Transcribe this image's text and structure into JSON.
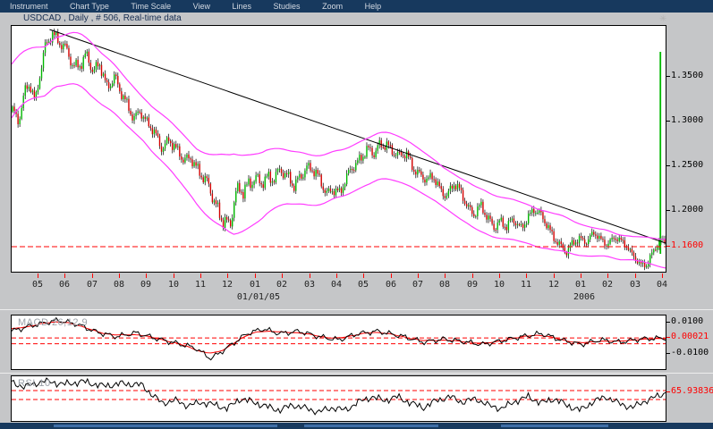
{
  "menubar": {
    "items": [
      "Instrument",
      "Chart Type",
      "Time Scale",
      "View",
      "Lines",
      "Studies",
      "Zoom",
      "Help"
    ]
  },
  "title_bar": {
    "text": "USDCAD , Daily , # 506, Real-time data"
  },
  "colors": {
    "up_candle": "#00b800",
    "down_candle": "#d40000",
    "wick": "#000000",
    "bollinger_band": "#ff3cff",
    "trendline": "#000000",
    "support_line": "#ff0000",
    "menu_bg": "#17395e",
    "menu_text": "#d4dae3",
    "panel_bg": "#ffffff",
    "app_bg": "#c5c6c8",
    "macd_line": "#000000",
    "macd_signal": "#ff0000",
    "rsi_line": "#000000",
    "axis_text": "#222222"
  },
  "chart_data": [
    {
      "type": "candlestick",
      "instrument": "USDCAD",
      "timeframe": "Daily",
      "candle_count": 506,
      "y_range": [
        1.131,
        1.408
      ],
      "y_axis": {
        "ticks": [
          {
            "label": "1.3500",
            "value": 1.35,
            "color": "#000000"
          },
          {
            "label": "1.3000",
            "value": 1.3,
            "color": "#000000"
          },
          {
            "label": "1.2500",
            "value": 1.25,
            "color": "#000000"
          },
          {
            "label": "1.2000",
            "value": 1.2,
            "color": "#000000"
          },
          {
            "label": "1.1600",
            "value": 1.16,
            "color": "#ff0000"
          }
        ]
      },
      "x_axis": {
        "labels": [
          "05",
          "06",
          "07",
          "08",
          "09",
          "10",
          "11",
          "12",
          "01",
          "02",
          "03",
          "04",
          "05",
          "06",
          "07",
          "08",
          "09",
          "10",
          "11",
          "12",
          "01",
          "02",
          "03",
          "04"
        ],
        "sub_labels": [
          {
            "text": "01/01/05",
            "tick_index": 8
          },
          {
            "text": "2006",
            "tick_index": 20
          }
        ]
      },
      "level_line": {
        "value": 1.16,
        "style": "dashed",
        "color": "#ff0000"
      },
      "trendline": {
        "t1": 0.058,
        "p1": 1.403,
        "t2": 1.0,
        "p2": 1.164
      },
      "last_candle_spike": {
        "t": 0.992,
        "low": 1.152,
        "high": 1.378
      },
      "band_offset_keypoints": [
        [
          0,
          0.03
        ],
        [
          0.06,
          0.027
        ],
        [
          0.12,
          0.03
        ],
        [
          0.2,
          0.024
        ],
        [
          0.28,
          0.03
        ],
        [
          0.34,
          0.045
        ],
        [
          0.42,
          0.03
        ],
        [
          0.5,
          0.026
        ],
        [
          0.58,
          0.026
        ],
        [
          0.66,
          0.022
        ],
        [
          0.72,
          0.024
        ],
        [
          0.78,
          0.022
        ],
        [
          0.84,
          0.02
        ],
        [
          0.9,
          0.015
        ],
        [
          0.95,
          0.013
        ],
        [
          1,
          0.016
        ]
      ],
      "price_keypoints": [
        [
          0,
          1.311
        ],
        [
          0.008,
          1.298
        ],
        [
          0.018,
          1.336
        ],
        [
          0.027,
          1.344
        ],
        [
          0.035,
          1.318
        ],
        [
          0.049,
          1.381
        ],
        [
          0.061,
          1.403
        ],
        [
          0.072,
          1.388
        ],
        [
          0.082,
          1.378
        ],
        [
          0.093,
          1.361
        ],
        [
          0.104,
          1.368
        ],
        [
          0.113,
          1.376
        ],
        [
          0.124,
          1.351
        ],
        [
          0.134,
          1.364
        ],
        [
          0.145,
          1.341
        ],
        [
          0.156,
          1.351
        ],
        [
          0.165,
          1.331
        ],
        [
          0.175,
          1.318
        ],
        [
          0.186,
          1.306
        ],
        [
          0.195,
          1.314
        ],
        [
          0.206,
          1.296
        ],
        [
          0.218,
          1.286
        ],
        [
          0.229,
          1.273
        ],
        [
          0.24,
          1.281
        ],
        [
          0.252,
          1.264
        ],
        [
          0.263,
          1.256
        ],
        [
          0.274,
          1.264
        ],
        [
          0.284,
          1.246
        ],
        [
          0.295,
          1.231
        ],
        [
          0.306,
          1.218
        ],
        [
          0.315,
          1.204
        ],
        [
          0.325,
          1.191
        ],
        [
          0.333,
          1.178
        ],
        [
          0.341,
          1.211
        ],
        [
          0.349,
          1.224
        ],
        [
          0.359,
          1.231
        ],
        [
          0.37,
          1.238
        ],
        [
          0.379,
          1.226
        ],
        [
          0.389,
          1.234
        ],
        [
          0.4,
          1.241
        ],
        [
          0.411,
          1.248
        ],
        [
          0.42,
          1.236
        ],
        [
          0.431,
          1.226
        ],
        [
          0.441,
          1.241
        ],
        [
          0.45,
          1.251
        ],
        [
          0.461,
          1.244
        ],
        [
          0.472,
          1.231
        ],
        [
          0.482,
          1.221
        ],
        [
          0.491,
          1.228
        ],
        [
          0.502,
          1.218
        ],
        [
          0.513,
          1.236
        ],
        [
          0.522,
          1.251
        ],
        [
          0.533,
          1.261
        ],
        [
          0.543,
          1.268
        ],
        [
          0.554,
          1.261
        ],
        [
          0.563,
          1.274
        ],
        [
          0.573,
          1.278
        ],
        [
          0.584,
          1.266
        ],
        [
          0.593,
          1.258
        ],
        [
          0.604,
          1.264
        ],
        [
          0.614,
          1.251
        ],
        [
          0.625,
          1.241
        ],
        [
          0.636,
          1.231
        ],
        [
          0.645,
          1.238
        ],
        [
          0.656,
          1.226
        ],
        [
          0.666,
          1.218
        ],
        [
          0.677,
          1.228
        ],
        [
          0.686,
          1.221
        ],
        [
          0.697,
          1.208
        ],
        [
          0.707,
          1.198
        ],
        [
          0.718,
          1.204
        ],
        [
          0.727,
          1.191
        ],
        [
          0.738,
          1.184
        ],
        [
          0.748,
          1.191
        ],
        [
          0.758,
          1.181
        ],
        [
          0.768,
          1.188
        ],
        [
          0.779,
          1.181
        ],
        [
          0.789,
          1.194
        ],
        [
          0.799,
          1.201
        ],
        [
          0.809,
          1.194
        ],
        [
          0.82,
          1.184
        ],
        [
          0.829,
          1.174
        ],
        [
          0.84,
          1.161
        ],
        [
          0.85,
          1.151
        ],
        [
          0.859,
          1.164
        ],
        [
          0.87,
          1.171
        ],
        [
          0.881,
          1.166
        ],
        [
          0.891,
          1.174
        ],
        [
          0.9,
          1.168
        ],
        [
          0.911,
          1.164
        ],
        [
          0.922,
          1.171
        ],
        [
          0.932,
          1.166
        ],
        [
          0.943,
          1.158
        ],
        [
          0.952,
          1.151
        ],
        [
          0.963,
          1.141
        ],
        [
          0.973,
          1.138
        ],
        [
          0.979,
          1.148
        ],
        [
          0.986,
          1.158
        ],
        [
          0.993,
          1.168
        ]
      ]
    },
    {
      "type": "line",
      "label": "MACD 26,12,9",
      "y_ticks": [
        {
          "label": "0.0100",
          "value": 0.01,
          "color": "#000000"
        },
        {
          "label": "0.00021",
          "value": 0.00021,
          "color": "#ff0000"
        },
        {
          "label": "-0.0100",
          "value": -0.01,
          "color": "#000000"
        }
      ],
      "dashed_lines": [
        0.00021,
        -0.0035
      ],
      "macd_keypoints": [
        [
          0,
          0.0045
        ],
        [
          0.03,
          0.008
        ],
        [
          0.07,
          0.0115
        ],
        [
          0.1,
          0.009
        ],
        [
          0.13,
          0.004
        ],
        [
          0.16,
          0.001
        ],
        [
          0.19,
          0.0035
        ],
        [
          0.22,
          0
        ],
        [
          0.25,
          -0.003
        ],
        [
          0.28,
          -0.006
        ],
        [
          0.305,
          -0.013
        ],
        [
          0.33,
          -0.006
        ],
        [
          0.36,
          0.003
        ],
        [
          0.385,
          0.006
        ],
        [
          0.41,
          0.003
        ],
        [
          0.44,
          0.0045
        ],
        [
          0.47,
          0.001
        ],
        [
          0.5,
          -0.001
        ],
        [
          0.53,
          0.003
        ],
        [
          0.56,
          0.0045
        ],
        [
          0.6,
          0.001
        ],
        [
          0.63,
          -0.0025
        ],
        [
          0.66,
          -0.0005
        ],
        [
          0.69,
          -0.002
        ],
        [
          0.72,
          -0.004
        ],
        [
          0.75,
          -0.0015
        ],
        [
          0.78,
          0.001
        ],
        [
          0.81,
          0.003
        ],
        [
          0.84,
          -0.001
        ],
        [
          0.87,
          -0.004
        ],
        [
          0.9,
          -0.001
        ],
        [
          0.93,
          -0.0025
        ],
        [
          0.96,
          -0.0005
        ],
        [
          1,
          0.0002
        ]
      ]
    },
    {
      "type": "line",
      "label": "RSI 10",
      "value_label": {
        "label": "65.93836",
        "value": 65.93836,
        "color": "#ff0000"
      },
      "dashed_lines": [
        70,
        50
      ],
      "y_range": [
        0,
        106
      ],
      "rsi_keypoints": [
        [
          0,
          88
        ],
        [
          0.02,
          78
        ],
        [
          0.05,
          92
        ],
        [
          0.08,
          84
        ],
        [
          0.11,
          90
        ],
        [
          0.14,
          80
        ],
        [
          0.17,
          86
        ],
        [
          0.2,
          82
        ],
        [
          0.215,
          60
        ],
        [
          0.23,
          42
        ],
        [
          0.25,
          48
        ],
        [
          0.27,
          36
        ],
        [
          0.29,
          44
        ],
        [
          0.31,
          38
        ],
        [
          0.33,
          30
        ],
        [
          0.35,
          52
        ],
        [
          0.37,
          44
        ],
        [
          0.39,
          34
        ],
        [
          0.41,
          26
        ],
        [
          0.43,
          38
        ],
        [
          0.45,
          30
        ],
        [
          0.47,
          22
        ],
        [
          0.49,
          32
        ],
        [
          0.51,
          26
        ],
        [
          0.53,
          44
        ],
        [
          0.55,
          56
        ],
        [
          0.57,
          48
        ],
        [
          0.59,
          56
        ],
        [
          0.61,
          42
        ],
        [
          0.63,
          32
        ],
        [
          0.65,
          48
        ],
        [
          0.67,
          56
        ],
        [
          0.69,
          44
        ],
        [
          0.71,
          52
        ],
        [
          0.73,
          36
        ],
        [
          0.75,
          30
        ],
        [
          0.77,
          46
        ],
        [
          0.79,
          56
        ],
        [
          0.81,
          42
        ],
        [
          0.83,
          52
        ],
        [
          0.85,
          36
        ],
        [
          0.87,
          26
        ],
        [
          0.89,
          46
        ],
        [
          0.91,
          56
        ],
        [
          0.93,
          40
        ],
        [
          0.95,
          32
        ],
        [
          0.97,
          48
        ],
        [
          0.99,
          58
        ],
        [
          1,
          66
        ]
      ]
    }
  ]
}
